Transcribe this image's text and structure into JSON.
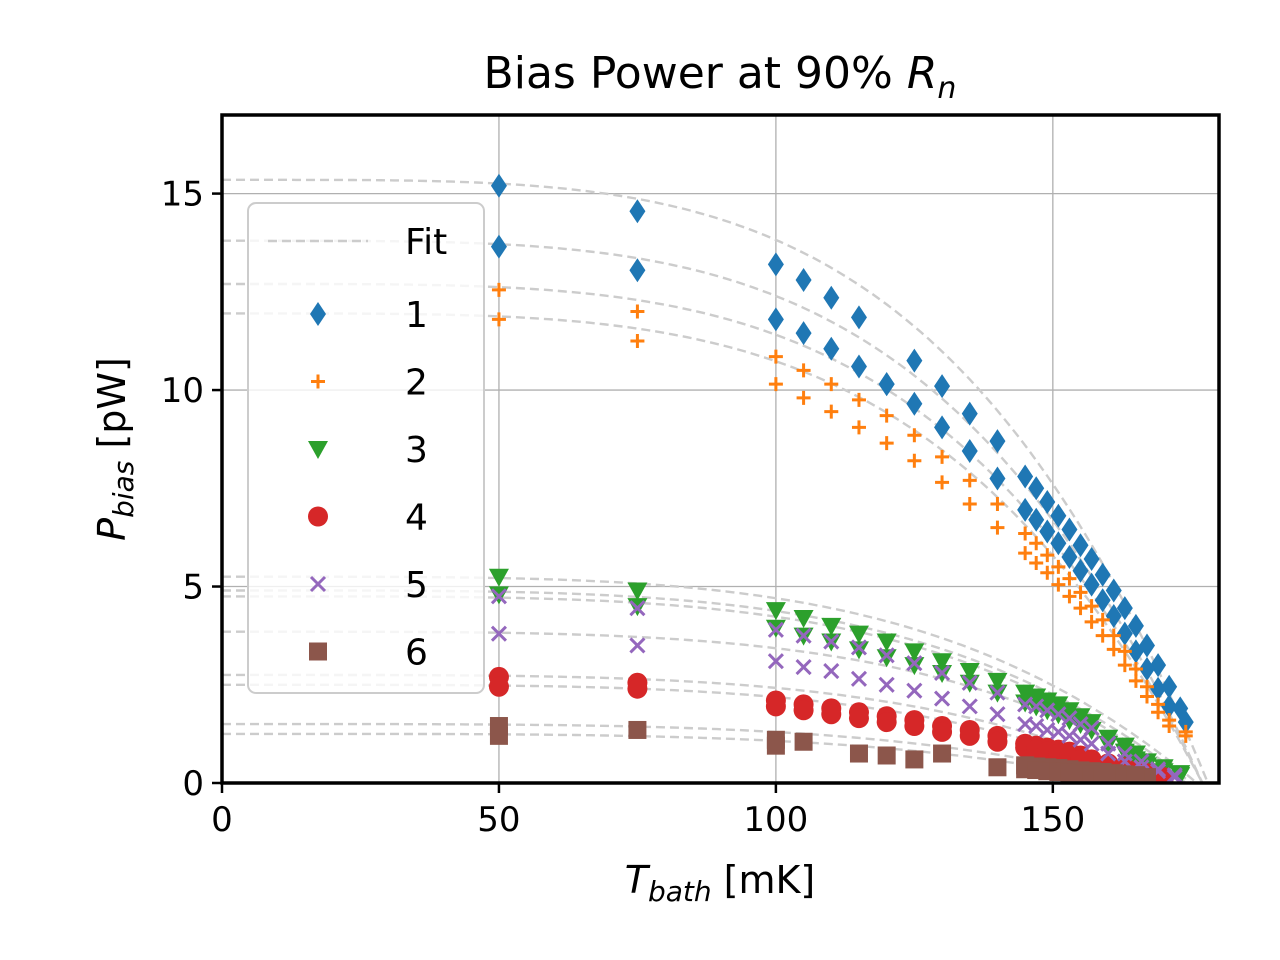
{
  "chart_data": {
    "type": "scatter",
    "title": "Bias Power at 90% ",
    "title_math": {
      "base": "R",
      "sub": "n"
    },
    "xlabel": {
      "base": "T",
      "sub": "bath",
      "unit": " [mK]"
    },
    "ylabel": {
      "base": "P",
      "sub": "bias",
      "unit": " [pW]"
    },
    "xlim": [
      0,
      180
    ],
    "ylim": [
      0,
      17
    ],
    "xticks": [
      0,
      50,
      100,
      150
    ],
    "yticks": [
      0,
      5,
      10,
      15
    ],
    "grid": true,
    "legend": {
      "location": "upper-left",
      "fit_label": "Fit",
      "entries": [
        "1",
        "2",
        "3",
        "4",
        "5",
        "6"
      ]
    },
    "fit_label": "Fit",
    "fit_curves": [
      {
        "p0": 15.35,
        "tc": 178
      },
      {
        "p0": 13.8,
        "tc": 177
      },
      {
        "p0": 12.7,
        "tc": 177
      },
      {
        "p0": 11.95,
        "tc": 177
      },
      {
        "p0": 5.25,
        "tc": 176
      },
      {
        "p0": 4.9,
        "tc": 175
      },
      {
        "p0": 4.75,
        "tc": 174
      },
      {
        "p0": 3.85,
        "tc": 174
      },
      {
        "p0": 2.75,
        "tc": 170
      },
      {
        "p0": 2.5,
        "tc": 168
      },
      {
        "p0": 1.5,
        "tc": 165
      },
      {
        "p0": 1.25,
        "tc": 163
      }
    ],
    "series": [
      {
        "name": "1",
        "marker": "diamond",
        "color": "#1f77b4",
        "x": [
          50,
          75,
          100,
          105,
          110,
          115,
          120,
          125,
          130,
          135,
          140,
          145,
          147,
          149,
          151,
          153,
          155,
          157,
          159,
          161,
          163,
          165,
          167,
          169,
          171,
          173,
          50,
          75,
          100,
          105,
          110,
          115,
          120,
          125,
          130,
          135,
          140,
          145,
          147,
          149,
          151,
          153,
          155,
          157,
          159,
          161,
          163,
          165,
          167,
          169,
          171,
          174
        ],
        "y": [
          15.2,
          14.55,
          13.2,
          12.8,
          12.35,
          11.85,
          10.15,
          10.75,
          10.1,
          9.4,
          8.7,
          7.8,
          7.5,
          7.15,
          6.8,
          6.45,
          6.05,
          5.7,
          5.3,
          4.9,
          4.45,
          4.0,
          3.5,
          3.0,
          2.45,
          1.9,
          13.65,
          13.05,
          11.8,
          11.45,
          11.05,
          10.6,
          10.15,
          9.65,
          9.05,
          8.45,
          7.75,
          6.95,
          6.7,
          6.4,
          6.1,
          5.75,
          5.4,
          5.05,
          4.65,
          4.25,
          3.8,
          3.35,
          2.9,
          2.4,
          1.95,
          1.55
        ]
      },
      {
        "name": "2",
        "marker": "plus",
        "color": "#ff7f0e",
        "x": [
          50,
          75,
          100,
          105,
          110,
          115,
          120,
          125,
          130,
          135,
          140,
          145,
          147,
          149,
          151,
          153,
          155,
          157,
          159,
          161,
          163,
          165,
          167,
          169,
          171,
          174,
          50,
          75,
          100,
          105,
          110,
          115,
          120,
          125,
          130,
          135,
          140,
          145,
          147,
          149,
          151,
          153,
          155,
          157,
          159,
          161,
          163,
          165,
          167,
          169,
          171,
          174
        ],
        "y": [
          12.55,
          12.0,
          10.85,
          10.5,
          10.15,
          9.75,
          9.35,
          8.85,
          8.3,
          7.7,
          7.1,
          6.35,
          6.1,
          5.8,
          5.5,
          5.2,
          4.85,
          4.5,
          4.15,
          3.75,
          3.35,
          2.9,
          2.45,
          2.0,
          1.6,
          1.3,
          11.8,
          11.25,
          10.15,
          9.8,
          9.45,
          9.05,
          8.65,
          8.2,
          7.65,
          7.1,
          6.5,
          5.85,
          5.6,
          5.35,
          5.05,
          4.75,
          4.45,
          4.1,
          3.75,
          3.4,
          3.0,
          2.6,
          2.2,
          1.8,
          1.45,
          1.2
        ]
      },
      {
        "name": "3",
        "marker": "triangle-down",
        "color": "#2ca02c",
        "x": [
          50,
          75,
          100,
          105,
          110,
          115,
          120,
          125,
          130,
          135,
          140,
          145,
          147,
          149,
          151,
          153,
          155,
          157,
          160,
          163,
          165,
          167,
          170,
          173,
          50,
          75,
          100,
          105,
          110,
          115,
          120,
          125,
          130,
          135,
          140,
          145,
          147,
          149,
          151,
          153,
          155,
          157,
          160,
          163,
          165,
          167,
          170,
          173
        ],
        "y": [
          5.25,
          4.9,
          4.4,
          4.2,
          4.0,
          3.8,
          3.6,
          3.35,
          3.1,
          2.85,
          2.6,
          2.3,
          2.2,
          2.1,
          2.0,
          1.85,
          1.7,
          1.55,
          1.15,
          0.95,
          0.75,
          0.55,
          0.4,
          0.25,
          4.8,
          4.5,
          3.95,
          3.75,
          3.6,
          3.4,
          3.2,
          3.0,
          2.8,
          2.55,
          2.3,
          2.05,
          1.95,
          1.85,
          1.75,
          1.6,
          1.5,
          1.35,
          1.0,
          0.8,
          0.6,
          0.45,
          0.3,
          0.2
        ]
      },
      {
        "name": "4",
        "marker": "circle",
        "color": "#d62728",
        "x": [
          50,
          75,
          100,
          105,
          110,
          115,
          120,
          125,
          130,
          135,
          140,
          145,
          147,
          149,
          151,
          153,
          155,
          157,
          160,
          163,
          165,
          167,
          170,
          50,
          75,
          100,
          105,
          110,
          115,
          120,
          125,
          130,
          135,
          140,
          145,
          147,
          149,
          151,
          153,
          155,
          157,
          160,
          163,
          165,
          167,
          170
        ],
        "y": [
          2.7,
          2.55,
          2.1,
          2.0,
          1.9,
          1.8,
          1.7,
          1.6,
          1.45,
          1.35,
          1.2,
          1.0,
          0.95,
          0.9,
          0.85,
          0.8,
          0.7,
          0.6,
          0.5,
          0.4,
          0.3,
          0.25,
          0.15,
          2.45,
          2.4,
          1.95,
          1.85,
          1.75,
          1.65,
          1.55,
          1.45,
          1.3,
          1.2,
          1.05,
          0.9,
          0.85,
          0.8,
          0.75,
          0.7,
          0.6,
          0.55,
          0.45,
          0.35,
          0.25,
          0.2,
          0.1
        ]
      },
      {
        "name": "5",
        "marker": "x",
        "color": "#9467bd",
        "x": [
          50,
          75,
          100,
          105,
          110,
          115,
          120,
          125,
          130,
          135,
          140,
          145,
          147,
          149,
          151,
          153,
          155,
          157,
          160,
          163,
          166,
          169,
          172,
          50,
          75,
          100,
          105,
          110,
          115,
          120,
          125,
          130,
          135,
          140,
          145,
          147,
          149,
          151,
          153,
          155,
          157,
          160,
          163,
          166,
          169,
          172
        ],
        "y": [
          4.75,
          4.45,
          3.9,
          3.75,
          3.6,
          3.45,
          3.25,
          3.05,
          2.8,
          2.55,
          2.3,
          2.0,
          1.95,
          1.85,
          1.75,
          1.65,
          1.5,
          1.4,
          1.0,
          0.75,
          0.55,
          0.35,
          0.2,
          3.8,
          3.5,
          3.1,
          2.95,
          2.85,
          2.65,
          2.5,
          2.35,
          2.15,
          1.95,
          1.75,
          1.5,
          1.45,
          1.35,
          1.3,
          1.2,
          1.1,
          1.0,
          0.75,
          0.55,
          0.4,
          0.3,
          0.15
        ]
      },
      {
        "name": "6",
        "marker": "square",
        "color": "#8c564b",
        "x": [
          50,
          75,
          100,
          105,
          115,
          120,
          125,
          130,
          140,
          145,
          147,
          149,
          151,
          153,
          155,
          157,
          159,
          161,
          163,
          165,
          167,
          50,
          100,
          145,
          147,
          149,
          151,
          153,
          155,
          157,
          159,
          161,
          163,
          165
        ],
        "y": [
          1.45,
          1.35,
          1.1,
          1.05,
          0.75,
          0.7,
          0.6,
          0.75,
          0.4,
          0.45,
          0.42,
          0.4,
          0.38,
          0.35,
          0.32,
          0.3,
          0.28,
          0.25,
          0.22,
          0.2,
          0.15,
          1.2,
          0.95,
          0.35,
          0.33,
          0.3,
          0.28,
          0.26,
          0.24,
          0.22,
          0.2,
          0.18,
          0.15,
          0.12
        ]
      }
    ]
  }
}
